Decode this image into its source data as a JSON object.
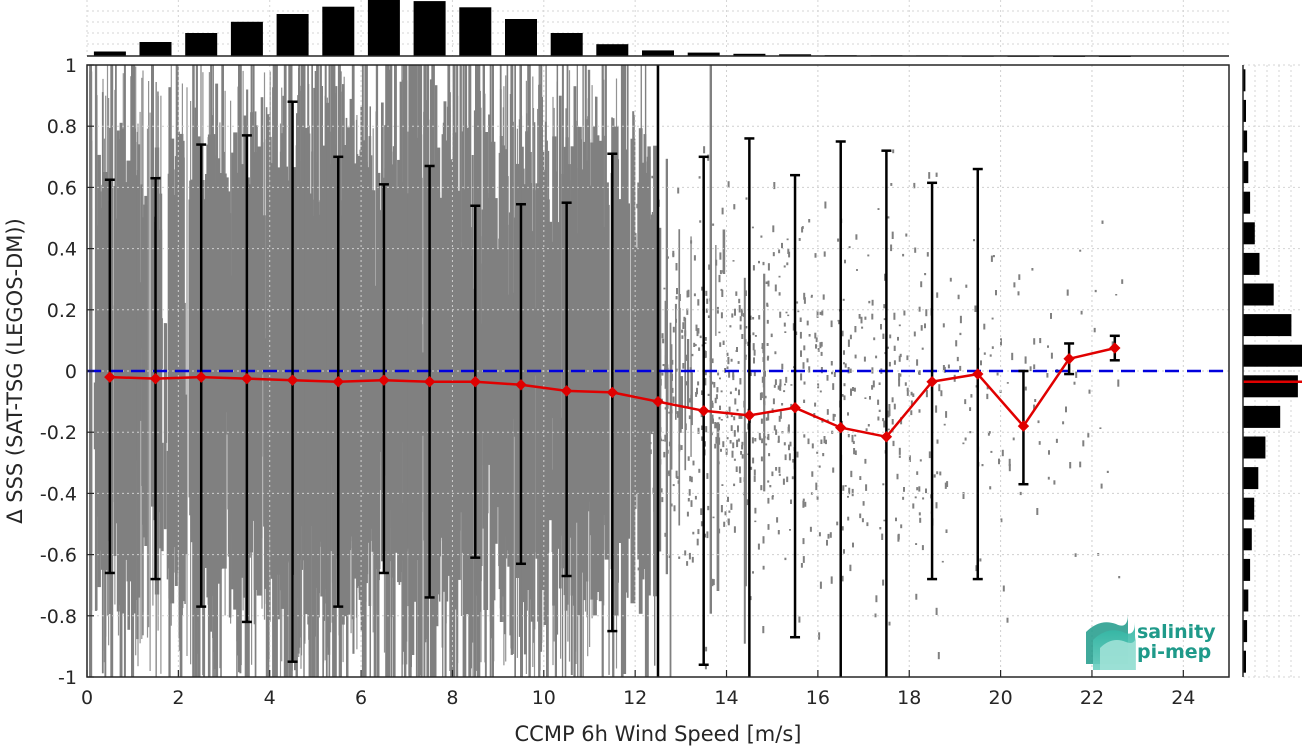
{
  "chart_data": {
    "type": "scatter",
    "xlabel": "CCMP 6h Wind Speed [m/s]",
    "ylabel": "Δ SSS (SAT-TSG (LEGOS-DM))",
    "xlim": [
      0,
      25
    ],
    "ylim": [
      -1,
      1
    ],
    "x_ticks": [
      0,
      2,
      4,
      6,
      8,
      10,
      12,
      14,
      16,
      18,
      20,
      22,
      24
    ],
    "y_ticks": [
      -1,
      -0.8,
      -0.6,
      -0.4,
      -0.2,
      0,
      0.2,
      0.4,
      0.6,
      0.8,
      1
    ],
    "grid": true,
    "zero_line": {
      "y": 0,
      "color": "#0000dd",
      "style": "dashed"
    },
    "scatter_color": "#808080",
    "series": [
      {
        "type": "line-errorbar",
        "color": "#e00000",
        "x": [
          0.5,
          1.5,
          2.5,
          3.5,
          4.5,
          5.5,
          6.5,
          7.5,
          8.5,
          9.5,
          10.5,
          11.5,
          12.5,
          13.5,
          14.5,
          15.5,
          16.5,
          17.5,
          18.5,
          19.5,
          20.5,
          21.5,
          22.5
        ],
        "y": [
          -0.02,
          -0.025,
          -0.02,
          -0.025,
          -0.03,
          -0.035,
          -0.03,
          -0.035,
          -0.035,
          -0.045,
          -0.065,
          -0.07,
          -0.1,
          -0.13,
          -0.145,
          -0.12,
          -0.185,
          -0.215,
          -0.035,
          -0.01,
          -0.18,
          0.04,
          0.075
        ],
        "err_low": [
          -0.66,
          -0.68,
          -0.77,
          -0.82,
          -0.95,
          -0.77,
          -0.66,
          -0.74,
          -0.61,
          -0.63,
          -0.67,
          -0.85,
          -1.2,
          -0.96,
          -1.2,
          -0.87,
          -1.2,
          -1.2,
          -0.68,
          -0.68,
          -0.37,
          -0.01,
          0.035
        ],
        "err_high": [
          0.625,
          0.63,
          0.74,
          0.77,
          0.88,
          0.7,
          0.61,
          0.67,
          0.54,
          0.545,
          0.55,
          0.71,
          1.2,
          0.7,
          0.76,
          0.64,
          0.75,
          0.72,
          0.615,
          0.66,
          0.0,
          0.09,
          0.115
        ]
      }
    ],
    "top_histogram": {
      "color": "#000000",
      "x": [
        0.5,
        1.5,
        2.5,
        3.5,
        4.5,
        5.5,
        6.5,
        7.5,
        8.5,
        9.5,
        10.5,
        11.5,
        12.5,
        13.5,
        14.5,
        15.5,
        16.5,
        17.5,
        18.5,
        19.5,
        20.5,
        21.5,
        22.5
      ],
      "counts": [
        0.08,
        0.25,
        0.41,
        0.61,
        0.75,
        0.88,
        1.0,
        0.98,
        0.87,
        0.66,
        0.41,
        0.21,
        0.1,
        0.06,
        0.04,
        0.03,
        0.015,
        0.012,
        0.01,
        0.005,
        0.003,
        0.002,
        0.002
      ]
    },
    "right_histogram": {
      "color": "#000000",
      "mean_line": {
        "y": -0.035,
        "color": "#e00000"
      },
      "y": [
        -0.95,
        -0.85,
        -0.75,
        -0.65,
        -0.55,
        -0.45,
        -0.35,
        -0.25,
        -0.15,
        -0.05,
        0.05,
        0.15,
        0.25,
        0.35,
        0.45,
        0.55,
        0.65,
        0.75,
        0.85,
        0.95
      ],
      "counts": [
        0.05,
        0.07,
        0.09,
        0.12,
        0.15,
        0.19,
        0.26,
        0.38,
        0.63,
        0.93,
        1.0,
        0.82,
        0.52,
        0.28,
        0.2,
        0.12,
        0.09,
        0.07,
        0.05,
        0.04
      ]
    }
  },
  "logo": {
    "line1": "salinity",
    "line2": "pi-mep"
  }
}
